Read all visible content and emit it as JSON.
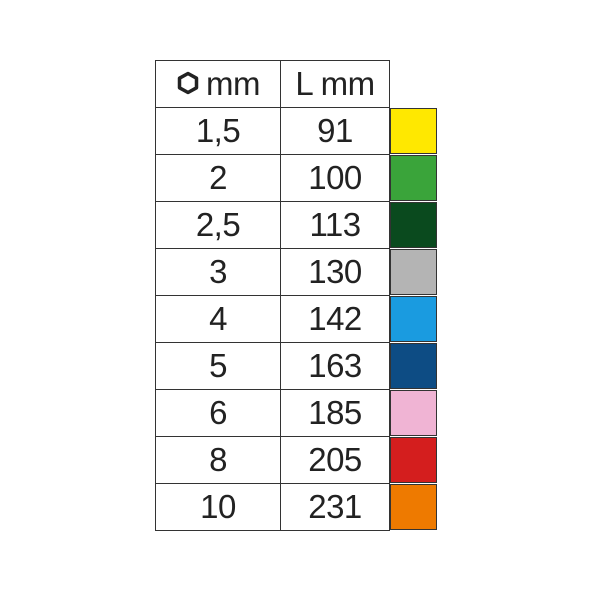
{
  "header": {
    "col1_unit": "mm",
    "col1_icon": "hexagon-icon",
    "col2": "L mm"
  },
  "rows": [
    {
      "size": "1,5",
      "length": "91",
      "color": "#FFE800"
    },
    {
      "size": "2",
      "length": "100",
      "color": "#3AA43A"
    },
    {
      "size": "2,5",
      "length": "113",
      "color": "#0A4A1E"
    },
    {
      "size": "3",
      "length": "130",
      "color": "#B4B4B4"
    },
    {
      "size": "4",
      "length": "142",
      "color": "#1A9BE0"
    },
    {
      "size": "5",
      "length": "163",
      "color": "#0D4C84"
    },
    {
      "size": "6",
      "length": "185",
      "color": "#F0B4D4"
    },
    {
      "size": "8",
      "length": "205",
      "color": "#D41E1E"
    },
    {
      "size": "10",
      "length": "231",
      "color": "#EE7A00"
    }
  ]
}
